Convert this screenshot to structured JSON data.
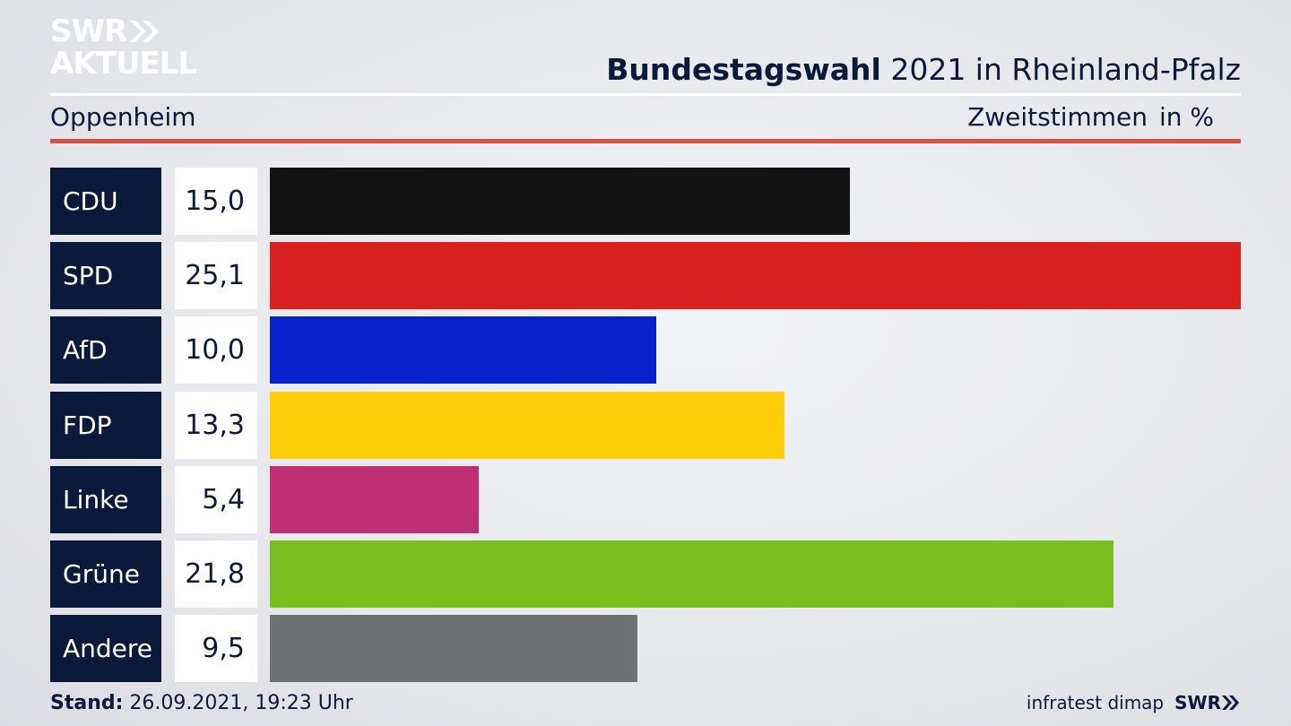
{
  "logo": {
    "line1": "SWR",
    "line2": "AKTUELL"
  },
  "header": {
    "title_bold": "Bundestagswahl",
    "title_rest": " 2021 in Rheinland-Pfalz",
    "region": "Oppenheim",
    "metric": "Zweitstimmen",
    "unit": "in %"
  },
  "footer": {
    "stand_label": "Stand:",
    "stand_value": " 26.09.2021, 19:23 Uhr",
    "source": "infratest dimap",
    "brand": "SWR"
  },
  "chart_data": {
    "type": "bar",
    "orientation": "horizontal",
    "title": "Bundestagswahl 2021 in Rheinland-Pfalz",
    "categories": [
      "CDU",
      "SPD",
      "AfD",
      "FDP",
      "Linke",
      "Grüne",
      "Andere"
    ],
    "values": [
      15.0,
      25.1,
      10.0,
      13.3,
      5.4,
      21.8,
      9.5
    ],
    "labels": [
      "15,0",
      "25,1",
      "10,0",
      "13,3",
      "5,4",
      "21,8",
      "9,5"
    ],
    "colors": [
      "#141414",
      "#d82020",
      "#0421cc",
      "#ffcc0a",
      "#bf2f72",
      "#78be1e",
      "#707173"
    ],
    "xlim": [
      0,
      25.1
    ],
    "grid": false,
    "legend": "none"
  }
}
